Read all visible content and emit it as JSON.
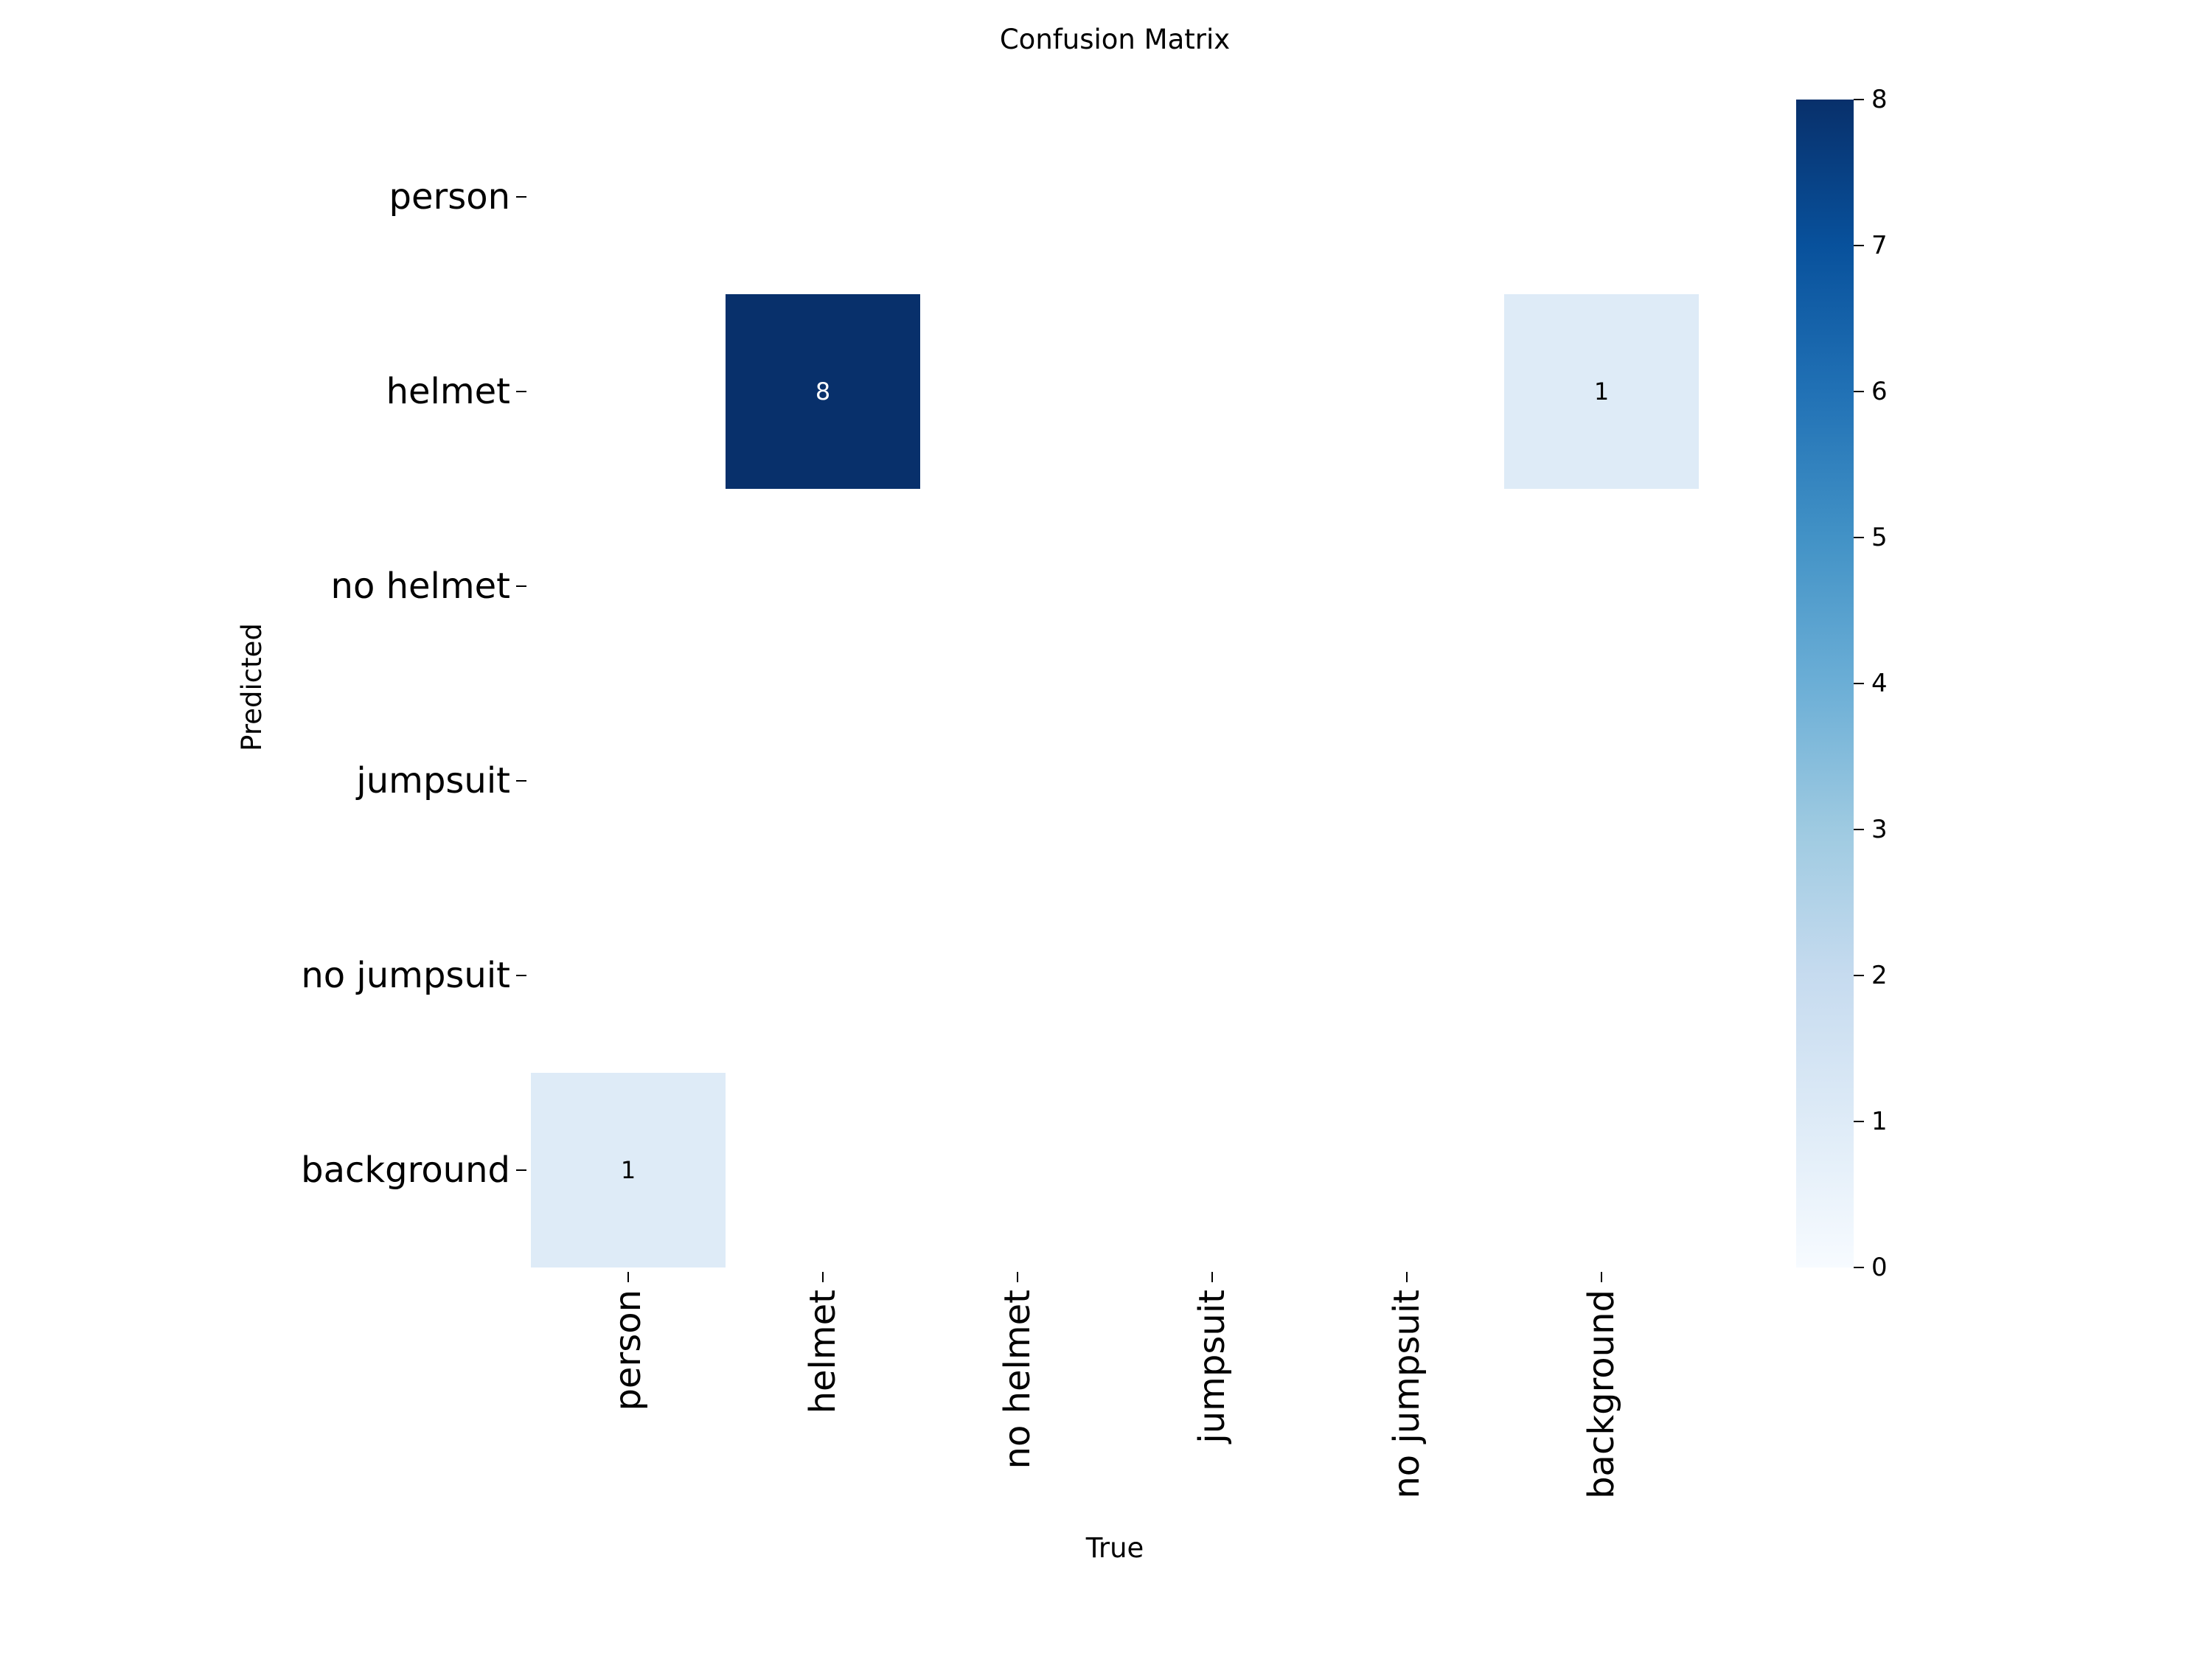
{
  "chart_data": {
    "type": "heatmap",
    "title": "Confusion Matrix",
    "xlabel": "True",
    "ylabel": "Predicted",
    "x_categories": [
      "person",
      "helmet",
      "no helmet",
      "jumpsuit",
      "no jumpsuit",
      "background"
    ],
    "y_categories": [
      "person",
      "helmet",
      "no helmet",
      "jumpsuit",
      "no jumpsuit",
      "background"
    ],
    "matrix": [
      [
        0,
        0,
        0,
        0,
        0,
        0
      ],
      [
        0,
        8,
        0,
        0,
        0,
        1
      ],
      [
        0,
        0,
        0,
        0,
        0,
        0
      ],
      [
        0,
        0,
        0,
        0,
        0,
        0
      ],
      [
        0,
        0,
        0,
        0,
        0,
        0
      ],
      [
        1,
        0,
        0,
        0,
        0,
        0
      ]
    ],
    "zero_cells_hidden": true,
    "colormap": "Blues",
    "colorbar": {
      "range": [
        0,
        8
      ],
      "ticks": [
        0,
        1,
        2,
        3,
        4,
        5,
        6,
        7,
        8
      ],
      "low_color": "#f7fbff",
      "high_color": "#08306b"
    }
  }
}
